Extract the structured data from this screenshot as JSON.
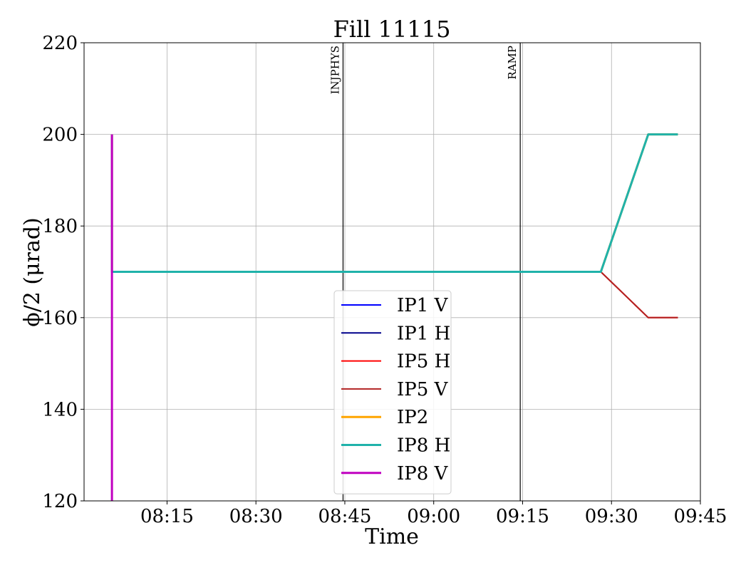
{
  "chart_data": {
    "type": "line",
    "title": "Fill 11115",
    "xlabel": "Time",
    "ylabel": "ϕ/2 (μrad)",
    "ylim": [
      120,
      220
    ],
    "yticks": [
      120,
      140,
      160,
      180,
      200,
      220
    ],
    "xlim": [
      "08:01",
      "09:45"
    ],
    "xticks": [
      "08:15",
      "08:30",
      "08:45",
      "09:00",
      "09:15",
      "09:30",
      "09:45"
    ],
    "grid": true,
    "legend_position": "lower center",
    "vlines": [
      {
        "label": "INJPHYS",
        "x": "08:44.7"
      },
      {
        "label": "RAMP",
        "x": "09:14.6"
      }
    ],
    "series": [
      {
        "name": "IP1 V",
        "color": "#0000ff",
        "width": 2,
        "points": [
          [
            "08:05.7",
            200
          ],
          [
            "08:05.7",
            170
          ],
          [
            "09:28.2",
            170
          ],
          [
            "09:36.2",
            200
          ],
          [
            "09:41.2",
            200
          ]
        ]
      },
      {
        "name": "IP1 H",
        "color": "#00008b",
        "width": 2,
        "points": [
          [
            "08:05.7",
            200
          ],
          [
            "08:05.7",
            170
          ],
          [
            "09:28.2",
            170
          ],
          [
            "09:36.2",
            200
          ],
          [
            "09:41.2",
            200
          ]
        ]
      },
      {
        "name": "IP5 H",
        "color": "#ff0000",
        "width": 2,
        "points": [
          [
            "08:05.7",
            200
          ],
          [
            "08:05.7",
            170
          ],
          [
            "09:28.2",
            170
          ],
          [
            "09:36.2",
            160
          ],
          [
            "09:41.2",
            160
          ]
        ]
      },
      {
        "name": "IP5 V",
        "color": "#b22222",
        "width": 2,
        "points": [
          [
            "08:05.7",
            200
          ],
          [
            "08:05.7",
            170
          ],
          [
            "09:28.2",
            170
          ],
          [
            "09:36.2",
            160
          ],
          [
            "09:41.2",
            160
          ]
        ]
      },
      {
        "name": "IP2",
        "color": "#ffa500",
        "width": 3,
        "points": [
          [
            "08:05.7",
            200
          ],
          [
            "08:05.7",
            170
          ],
          [
            "09:28.2",
            170
          ],
          [
            "09:36.2",
            200
          ],
          [
            "09:41.2",
            200
          ]
        ]
      },
      {
        "name": "IP8 H",
        "color": "#20b2aa",
        "width": 3,
        "points": [
          [
            "08:05.7",
            200
          ],
          [
            "08:05.7",
            170
          ],
          [
            "09:28.2",
            170
          ],
          [
            "09:36.2",
            200
          ],
          [
            "09:41.2",
            200
          ]
        ]
      },
      {
        "name": "IP8 V",
        "color": "#c000c0",
        "width": 3,
        "points": [
          [
            "08:05.7",
            120
          ],
          [
            "08:05.7",
            200
          ]
        ]
      }
    ]
  }
}
